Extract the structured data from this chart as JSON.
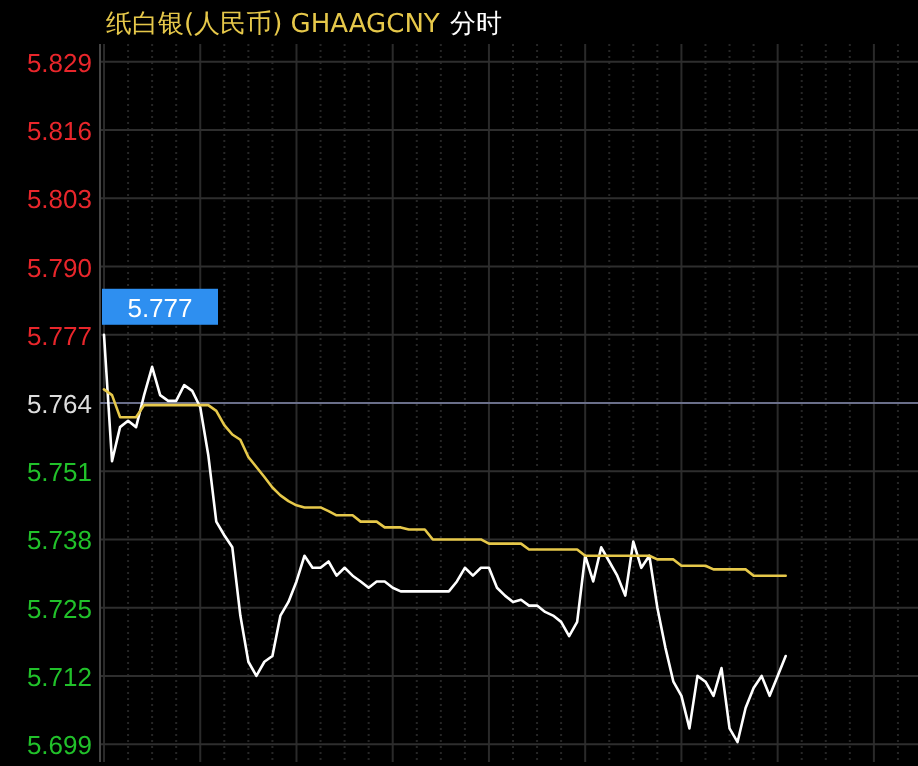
{
  "chart_data": {
    "type": "line",
    "title": "纸白银(人民币) GHAAGCNY",
    "subtitle": "分时",
    "categories": [
      null,
      null,
      null,
      null,
      null,
      null,
      null,
      null,
      null,
      null,
      null,
      null,
      null,
      null,
      null,
      null,
      null,
      null,
      null,
      null,
      null,
      null,
      null,
      null,
      null,
      null,
      null,
      null,
      null,
      null,
      null,
      null,
      null,
      null,
      null,
      null,
      null,
      null,
      null,
      null,
      null,
      null,
      null,
      null,
      null,
      null,
      null,
      null,
      null,
      null,
      null,
      null,
      null,
      null,
      null,
      null,
      null,
      null,
      null,
      null,
      null,
      null,
      null,
      null,
      null,
      null,
      null,
      null,
      null,
      null,
      null,
      null,
      null,
      null,
      null,
      null,
      null,
      null,
      null,
      null,
      null,
      null,
      null,
      null,
      null,
      null,
      null,
      null,
      null,
      null,
      null,
      null,
      null,
      null,
      null,
      null,
      null,
      null,
      null,
      null,
      null,
      null
    ],
    "series": [
      {
        "color": "#ffffff",
        "values": [
          5.777,
          5.7529,
          5.7594,
          5.7606,
          5.7594,
          5.7655,
          5.7709,
          5.7655,
          5.7644,
          5.7644,
          5.7674,
          5.7663,
          5.7632,
          5.7541,
          5.7414,
          5.7388,
          5.7365,
          5.7235,
          5.7147,
          5.712,
          5.7147,
          5.7158,
          5.7235,
          5.7261,
          5.73,
          5.7349,
          5.7326,
          5.7326,
          5.7338,
          5.7311,
          5.7326,
          5.7311,
          5.73,
          5.7288,
          5.73,
          5.73,
          5.7288,
          5.7281,
          5.7281,
          5.7281,
          5.7281,
          5.7281,
          5.7281,
          5.7281,
          5.73,
          5.7326,
          5.7311,
          5.7326,
          5.7326,
          5.7288,
          5.7273,
          5.7261,
          5.7265,
          5.7254,
          5.7254,
          5.7242,
          5.7235,
          5.7223,
          5.7196,
          5.7223,
          5.7349,
          5.73,
          5.7365,
          5.7338,
          5.7311,
          5.7273,
          5.7376,
          5.7326,
          5.7349,
          5.725,
          5.7174,
          5.7109,
          5.7082,
          5.702,
          5.712,
          5.7109,
          5.7082,
          5.7135,
          5.702,
          5.6994,
          5.7059,
          5.7097,
          5.712,
          5.7082,
          5.712,
          5.7158,
          null,
          null,
          null,
          null,
          null,
          null,
          null,
          null,
          null,
          null,
          null,
          null,
          null,
          null,
          null,
          null
        ]
      },
      {
        "color": "#e6c84a",
        "values": [
          5.7666,
          5.7655,
          5.7613,
          5.7613,
          5.7613,
          5.7636,
          5.7636,
          5.7636,
          5.7636,
          5.7636,
          5.7636,
          5.7636,
          5.7636,
          5.7636,
          5.7625,
          5.7598,
          5.758,
          5.757,
          5.7537,
          5.7518,
          5.7499,
          5.7479,
          5.7464,
          5.7453,
          5.7445,
          5.7441,
          5.7441,
          5.7441,
          5.7434,
          5.7426,
          5.7426,
          5.7426,
          5.7414,
          5.7414,
          5.7414,
          5.7403,
          5.7403,
          5.7403,
          5.7399,
          5.7399,
          5.7399,
          5.738,
          5.738,
          5.738,
          5.738,
          5.738,
          5.738,
          5.738,
          5.7372,
          5.7372,
          5.7372,
          5.7372,
          5.7372,
          5.7361,
          5.7361,
          5.7361,
          5.7361,
          5.7361,
          5.7361,
          5.7361,
          5.7349,
          5.7349,
          5.7349,
          5.7349,
          5.7349,
          5.7349,
          5.7349,
          5.7349,
          5.7349,
          5.7342,
          5.7342,
          5.7342,
          5.733,
          5.733,
          5.733,
          5.733,
          5.7323,
          5.7323,
          5.7323,
          5.7323,
          5.7323,
          5.7311,
          5.7311,
          5.7311,
          5.7311,
          5.7311,
          null,
          null,
          null,
          null,
          null,
          null,
          null,
          null,
          null,
          null,
          null,
          null,
          null,
          null,
          null,
          null
        ]
      }
    ],
    "ylim": [
      5.6956,
      5.8324
    ],
    "yticks": [
      {
        "value": 5.829,
        "label": "5.829"
      },
      {
        "value": 5.816,
        "label": "5.816"
      },
      {
        "value": 5.803,
        "label": "5.803"
      },
      {
        "value": 5.79,
        "label": "5.790"
      },
      {
        "value": 5.777,
        "label": "5.777"
      },
      {
        "value": 5.764,
        "label": "5.764"
      },
      {
        "value": 5.751,
        "label": "5.751"
      },
      {
        "value": 5.738,
        "label": "5.738"
      },
      {
        "value": 5.725,
        "label": "5.725"
      },
      {
        "value": 5.712,
        "label": "5.712"
      },
      {
        "value": 5.699,
        "label": "5.699"
      }
    ],
    "ref_lines": [
      {
        "axis": "y",
        "value": 5.764,
        "color": "#6a6f8a"
      }
    ],
    "annotations": [
      "5.777"
    ],
    "grid": true,
    "tick_labels": "y"
  }
}
